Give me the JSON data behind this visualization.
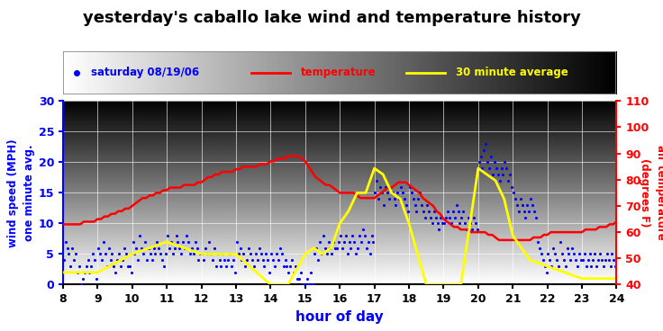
{
  "title": "yesterday's caballo lake wind and temperature history",
  "xlabel": "hour of day",
  "ylabel_left": "wind speed (MPH)\none minute avg.",
  "ylabel_right": "air temperature\n(degrees F)",
  "legend_label1": "saturday 08/19/06",
  "legend_label2": "temperature",
  "legend_label3": "30 minute average",
  "xlim": [
    8,
    24
  ],
  "ylim_left": [
    0,
    30
  ],
  "ylim_right": [
    40,
    110
  ],
  "xticks": [
    8,
    9,
    10,
    11,
    12,
    13,
    14,
    15,
    16,
    17,
    18,
    19,
    20,
    21,
    22,
    23,
    24
  ],
  "yticks_left": [
    0,
    5,
    10,
    15,
    20,
    25,
    30
  ],
  "yticks_right": [
    40,
    50,
    60,
    70,
    80,
    90,
    100,
    110
  ],
  "dot_color": "#0000ff",
  "temp_color": "#ff0000",
  "avg_color": "#ffff00",
  "wind_dots_x": [
    8.02,
    8.07,
    8.12,
    8.17,
    8.22,
    8.27,
    8.32,
    8.37,
    8.42,
    8.47,
    8.52,
    8.57,
    8.62,
    8.67,
    8.72,
    8.77,
    8.82,
    8.87,
    8.92,
    8.97,
    9.02,
    9.07,
    9.12,
    9.17,
    9.22,
    9.27,
    9.32,
    9.37,
    9.42,
    9.47,
    9.52,
    9.57,
    9.62,
    9.67,
    9.72,
    9.77,
    9.82,
    9.87,
    9.92,
    9.97,
    10.02,
    10.07,
    10.12,
    10.17,
    10.22,
    10.27,
    10.32,
    10.37,
    10.42,
    10.47,
    10.52,
    10.57,
    10.62,
    10.67,
    10.72,
    10.77,
    10.82,
    10.87,
    10.92,
    10.97,
    11.02,
    11.07,
    11.12,
    11.17,
    11.22,
    11.27,
    11.32,
    11.37,
    11.42,
    11.47,
    11.52,
    11.57,
    11.62,
    11.67,
    11.72,
    11.77,
    11.82,
    11.87,
    11.92,
    11.97,
    12.02,
    12.07,
    12.12,
    12.17,
    12.22,
    12.27,
    12.32,
    12.37,
    12.42,
    12.47,
    12.52,
    12.57,
    12.62,
    12.67,
    12.72,
    12.77,
    12.82,
    12.87,
    12.92,
    12.97,
    13.02,
    13.07,
    13.12,
    13.17,
    13.22,
    13.27,
    13.32,
    13.37,
    13.42,
    13.47,
    13.52,
    13.57,
    13.62,
    13.67,
    13.72,
    13.77,
    13.82,
    13.87,
    13.92,
    13.97,
    14.02,
    14.07,
    14.12,
    14.17,
    14.22,
    14.27,
    14.32,
    14.37,
    14.42,
    14.47,
    14.52,
    14.57,
    14.62,
    14.67,
    14.72,
    14.77,
    14.82,
    14.87,
    14.92,
    14.97,
    15.02,
    15.07,
    15.12,
    15.17,
    15.22,
    15.27,
    15.32,
    15.37,
    15.42,
    15.47,
    15.52,
    15.57,
    15.62,
    15.67,
    15.72,
    15.77,
    15.82,
    15.87,
    15.92,
    15.97,
    16.02,
    16.07,
    16.12,
    16.17,
    16.22,
    16.27,
    16.32,
    16.37,
    16.42,
    16.47,
    16.52,
    16.57,
    16.62,
    16.67,
    16.72,
    16.77,
    16.82,
    16.87,
    16.92,
    16.97,
    17.02,
    17.07,
    17.12,
    17.17,
    17.22,
    17.27,
    17.32,
    17.37,
    17.42,
    17.47,
    17.52,
    17.57,
    17.62,
    17.67,
    17.72,
    17.77,
    17.82,
    17.87,
    17.92,
    17.97,
    18.02,
    18.07,
    18.12,
    18.17,
    18.22,
    18.27,
    18.32,
    18.37,
    18.42,
    18.47,
    18.52,
    18.57,
    18.62,
    18.67,
    18.72,
    18.77,
    18.82,
    18.87,
    18.92,
    18.97,
    19.02,
    19.07,
    19.12,
    19.17,
    19.22,
    19.27,
    19.32,
    19.37,
    19.42,
    19.47,
    19.52,
    19.57,
    19.62,
    19.67,
    19.72,
    19.77,
    19.82,
    19.87,
    19.92,
    19.97,
    20.02,
    20.07,
    20.12,
    20.17,
    20.22,
    20.27,
    20.32,
    20.37,
    20.42,
    20.47,
    20.52,
    20.57,
    20.62,
    20.67,
    20.72,
    20.77,
    20.82,
    20.87,
    20.92,
    20.97,
    21.02,
    21.07,
    21.12,
    21.17,
    21.22,
    21.27,
    21.32,
    21.37,
    21.42,
    21.47,
    21.52,
    21.57,
    21.62,
    21.67,
    21.72,
    21.77,
    21.82,
    21.87,
    21.92,
    21.97,
    22.02,
    22.07,
    22.12,
    22.17,
    22.22,
    22.27,
    22.32,
    22.37,
    22.42,
    22.47,
    22.52,
    22.57,
    22.62,
    22.67,
    22.72,
    22.77,
    22.82,
    22.87,
    22.92,
    22.97,
    23.02,
    23.07,
    23.12,
    23.17,
    23.22,
    23.27,
    23.32,
    23.37,
    23.42,
    23.47,
    23.52,
    23.57,
    23.62,
    23.67,
    23.72,
    23.77,
    23.82,
    23.87,
    23.92,
    23.97
  ],
  "wind_dots_y": [
    4,
    7,
    6,
    5,
    3,
    6,
    4,
    5,
    2,
    3,
    0,
    1,
    2,
    3,
    4,
    2,
    3,
    5,
    4,
    1,
    6,
    5,
    4,
    7,
    5,
    3,
    6,
    4,
    5,
    3,
    2,
    4,
    5,
    3,
    4,
    6,
    5,
    3,
    3,
    2,
    7,
    5,
    6,
    4,
    8,
    6,
    5,
    7,
    4,
    6,
    5,
    4,
    6,
    5,
    7,
    6,
    5,
    4,
    3,
    5,
    8,
    6,
    7,
    5,
    6,
    8,
    7,
    6,
    5,
    7,
    6,
    8,
    7,
    5,
    6,
    5,
    7,
    6,
    4,
    5,
    5,
    4,
    6,
    5,
    7,
    5,
    4,
    6,
    3,
    5,
    4,
    3,
    5,
    4,
    3,
    4,
    5,
    3,
    4,
    2,
    7,
    5,
    6,
    4,
    5,
    3,
    4,
    6,
    5,
    4,
    3,
    5,
    4,
    6,
    5,
    4,
    3,
    5,
    4,
    2,
    5,
    4,
    3,
    5,
    4,
    6,
    5,
    3,
    4,
    3,
    2,
    3,
    4,
    2,
    3,
    1,
    1,
    2,
    0,
    0,
    0,
    1,
    0,
    2,
    0,
    5,
    6,
    4,
    7,
    5,
    8,
    6,
    5,
    7,
    6,
    5,
    7,
    6,
    6,
    7,
    8,
    6,
    7,
    8,
    5,
    7,
    6,
    8,
    7,
    5,
    6,
    8,
    7,
    9,
    8,
    6,
    7,
    5,
    8,
    7,
    15,
    17,
    14,
    16,
    15,
    13,
    16,
    15,
    14,
    16,
    15,
    14,
    13,
    15,
    14,
    16,
    15,
    14,
    13,
    12,
    16,
    15,
    14,
    13,
    12,
    14,
    15,
    13,
    12,
    11,
    13,
    12,
    11,
    10,
    12,
    11,
    10,
    9,
    11,
    10,
    10,
    11,
    12,
    11,
    10,
    12,
    11,
    13,
    12,
    10,
    11,
    12,
    10,
    9,
    11,
    10,
    9,
    11,
    10,
    9,
    20,
    21,
    19,
    22,
    23,
    20,
    19,
    21,
    18,
    20,
    19,
    18,
    17,
    19,
    18,
    20,
    19,
    17,
    18,
    16,
    15,
    14,
    13,
    12,
    14,
    13,
    12,
    11,
    13,
    12,
    14,
    13,
    12,
    11,
    7,
    6,
    5,
    4,
    3,
    2,
    5,
    4,
    3,
    6,
    5,
    4,
    3,
    7,
    5,
    4,
    3,
    6,
    5,
    4,
    6,
    5,
    4,
    3,
    5,
    4,
    4,
    5,
    3,
    4,
    5,
    3,
    4,
    5,
    3,
    4,
    5,
    4,
    3,
    4,
    5,
    4,
    3,
    5,
    4,
    3
  ],
  "temp_x": [
    8.0,
    8.1,
    8.2,
    8.3,
    8.4,
    8.5,
    8.6,
    8.7,
    8.8,
    8.9,
    9.0,
    9.1,
    9.2,
    9.3,
    9.4,
    9.5,
    9.6,
    9.7,
    9.8,
    9.9,
    10.0,
    10.1,
    10.2,
    10.3,
    10.4,
    10.5,
    10.6,
    10.7,
    10.8,
    10.9,
    11.0,
    11.1,
    11.2,
    11.3,
    11.4,
    11.5,
    11.6,
    11.7,
    11.8,
    11.9,
    12.0,
    12.1,
    12.2,
    12.3,
    12.4,
    12.5,
    12.6,
    12.7,
    12.8,
    12.9,
    13.0,
    13.1,
    13.2,
    13.3,
    13.4,
    13.5,
    13.6,
    13.7,
    13.8,
    13.9,
    14.0,
    14.1,
    14.2,
    14.3,
    14.4,
    14.5,
    14.6,
    14.7,
    14.8,
    14.9,
    15.0,
    15.1,
    15.2,
    15.3,
    15.4,
    15.5,
    15.6,
    15.7,
    15.8,
    15.9,
    16.0,
    16.1,
    16.2,
    16.3,
    16.4,
    16.5,
    16.6,
    16.7,
    16.8,
    16.9,
    17.0,
    17.1,
    17.2,
    17.3,
    17.4,
    17.5,
    17.6,
    17.7,
    17.8,
    17.9,
    18.0,
    18.1,
    18.2,
    18.3,
    18.4,
    18.5,
    18.6,
    18.7,
    18.8,
    18.9,
    19.0,
    19.1,
    19.2,
    19.3,
    19.4,
    19.5,
    19.6,
    19.7,
    19.8,
    19.9,
    20.0,
    20.1,
    20.2,
    20.3,
    20.4,
    20.5,
    20.6,
    20.7,
    20.8,
    20.9,
    21.0,
    21.1,
    21.2,
    21.3,
    21.4,
    21.5,
    21.6,
    21.7,
    21.8,
    21.9,
    22.0,
    22.1,
    22.2,
    22.3,
    22.4,
    22.5,
    22.6,
    22.7,
    22.8,
    22.9,
    23.0,
    23.1,
    23.2,
    23.3,
    23.4,
    23.5,
    23.6,
    23.7,
    23.8,
    23.9,
    24.0
  ],
  "temp_y": [
    63,
    63,
    63,
    63,
    63,
    63,
    64,
    64,
    64,
    64,
    65,
    65,
    66,
    66,
    67,
    67,
    68,
    68,
    69,
    69,
    70,
    71,
    72,
    73,
    73,
    74,
    74,
    75,
    75,
    76,
    76,
    77,
    77,
    77,
    77,
    78,
    78,
    78,
    78,
    79,
    79,
    80,
    81,
    81,
    82,
    82,
    83,
    83,
    83,
    83,
    84,
    84,
    85,
    85,
    85,
    85,
    85,
    86,
    86,
    86,
    87,
    87,
    88,
    88,
    88,
    89,
    89,
    89,
    89,
    88,
    87,
    85,
    83,
    81,
    80,
    79,
    78,
    78,
    77,
    76,
    75,
    75,
    75,
    75,
    75,
    74,
    73,
    73,
    73,
    73,
    73,
    74,
    75,
    76,
    77,
    77,
    78,
    79,
    79,
    79,
    78,
    77,
    76,
    75,
    73,
    72,
    71,
    70,
    68,
    67,
    65,
    64,
    63,
    62,
    62,
    61,
    61,
    61,
    60,
    60,
    60,
    60,
    60,
    59,
    59,
    58,
    57,
    57,
    57,
    57,
    57,
    57,
    57,
    57,
    57,
    57,
    58,
    58,
    58,
    59,
    59,
    60,
    60,
    60,
    60,
    60,
    60,
    60,
    60,
    60,
    60,
    61,
    61,
    61,
    61,
    62,
    62,
    62,
    63,
    63,
    64
  ],
  "avg_x": [
    8.0,
    9.0,
    10.0,
    10.5,
    11.0,
    11.5,
    12.0,
    12.5,
    13.0,
    14.0,
    14.5,
    15.0,
    15.25,
    15.5,
    15.75,
    16.0,
    16.25,
    16.5,
    16.75,
    17.0,
    17.25,
    17.5,
    17.75,
    18.0,
    18.5,
    19.0,
    19.5,
    20.0,
    20.25,
    20.5,
    20.75,
    21.0,
    21.5,
    22.0,
    22.5,
    23.0,
    23.5,
    24.0
  ],
  "avg_y": [
    2,
    2,
    5,
    6,
    7,
    6,
    5,
    5,
    5,
    0,
    0,
    5,
    6,
    5,
    6,
    10,
    12,
    15,
    15,
    19,
    18,
    15,
    14,
    10,
    0,
    0,
    0,
    19,
    18,
    17,
    14,
    8,
    4,
    3,
    2,
    1,
    1,
    1
  ]
}
